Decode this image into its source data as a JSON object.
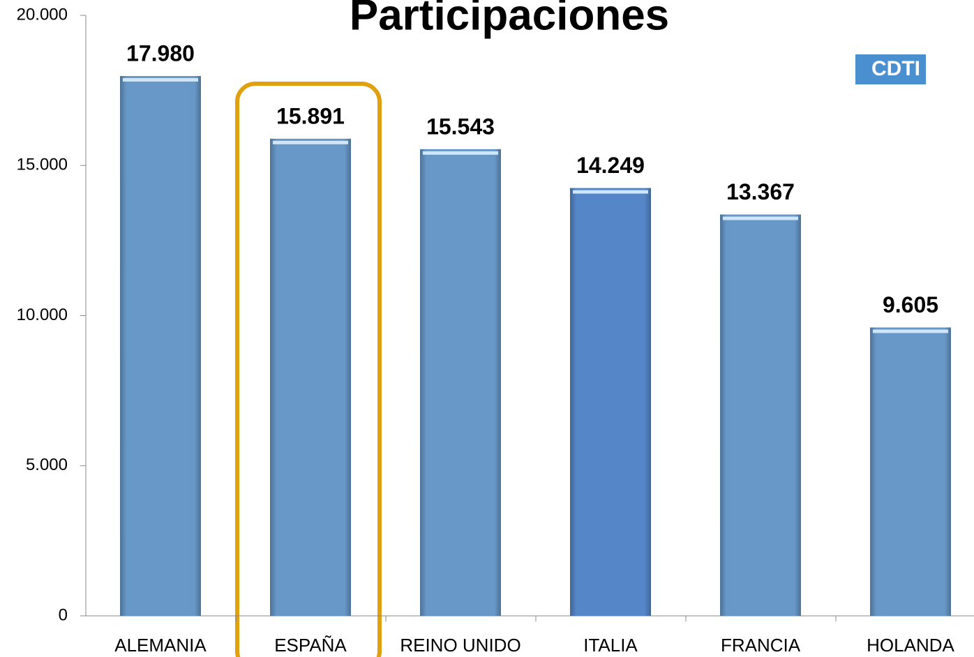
{
  "chart_data": {
    "type": "bar",
    "title": "Participaciones",
    "logo": "CDTI",
    "categories": [
      "ALEMANIA",
      "ESPAÑA",
      "REINO UNIDO",
      "ITALIA",
      "FRANCIA",
      "HOLANDA"
    ],
    "values": [
      17980,
      15891,
      15543,
      14249,
      13367,
      9605
    ],
    "value_labels": [
      "17.980",
      "15.891",
      "15.543",
      "14.249",
      "13.367",
      "9.605"
    ],
    "colors": [
      "#6798c8",
      "#6798c8",
      "#6798c8",
      "#5587c8",
      "#6798c8",
      "#6798c8"
    ],
    "ylim": [
      0,
      20000
    ],
    "yticks": [
      0,
      {
        "value": 5000,
        "label": "5.000"
      },
      {
        "value": 10000,
        "label": "10.000"
      },
      {
        "value": 15000,
        "label": "15.000"
      },
      {
        "value": 20000,
        "label": "20.000"
      }
    ],
    "grid": false
  }
}
